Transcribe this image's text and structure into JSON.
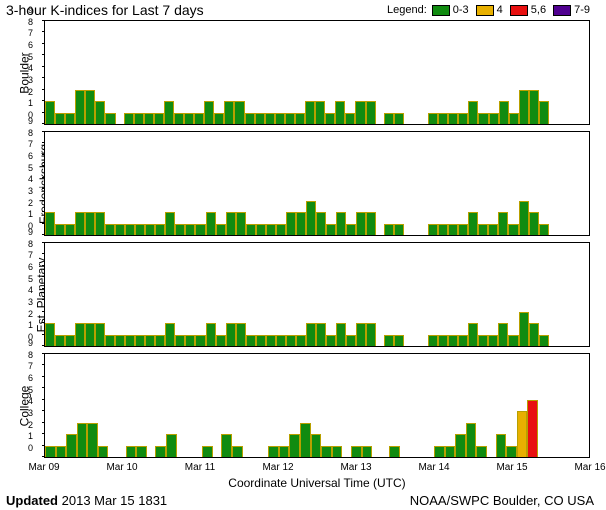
{
  "title": "3-hour K-indices for Last 7 days",
  "legend_label": "Legend:",
  "legend": [
    {
      "color": "#108b10",
      "label": "0-3"
    },
    {
      "color": "#e8b000",
      "label": "4"
    },
    {
      "color": "#e81010",
      "label": "5,6"
    },
    {
      "color": "#500090",
      "label": "7-9"
    }
  ],
  "chart": {
    "ymax": 9,
    "yticks": [
      0,
      1,
      2,
      3,
      4,
      5,
      6,
      7,
      8,
      9
    ],
    "xticks": [
      "Mar 09",
      "Mar 10",
      "Mar 11",
      "Mar 12",
      "Mar 13",
      "Mar 14",
      "Mar 15",
      "Mar 16"
    ],
    "xlabel": "Coordinate Universal Time (UTC)",
    "bar_border": "#b8a000",
    "colors": {
      "low": "#108b10",
      "mid": "#e8b000",
      "high": "#e81010",
      "storm": "#500090"
    }
  },
  "panels": [
    {
      "name": "Boulder",
      "values": [
        2,
        1,
        1,
        3,
        3,
        2,
        1,
        0,
        1,
        1,
        1,
        1,
        2,
        1,
        1,
        1,
        2,
        1,
        2,
        2,
        1,
        1,
        1,
        1,
        1,
        1,
        2,
        2,
        1,
        2,
        1,
        2,
        2,
        0,
        1,
        1,
        0,
        0,
        0,
        1,
        1,
        1,
        1,
        2,
        1,
        1,
        2,
        1,
        3,
        3,
        2,
        0,
        0,
        0,
        0,
        0
      ]
    },
    {
      "name": "Fredericksburg",
      "values": [
        2,
        1,
        1,
        2,
        2,
        2,
        1,
        1,
        1,
        1,
        1,
        1,
        2,
        1,
        1,
        1,
        2,
        1,
        2,
        2,
        1,
        1,
        1,
        1,
        2,
        2,
        3,
        2,
        1,
        2,
        1,
        2,
        2,
        0,
        1,
        1,
        0,
        0,
        0,
        1,
        1,
        1,
        1,
        2,
        1,
        1,
        2,
        1,
        3,
        2,
        1,
        0,
        0,
        0,
        0,
        0
      ]
    },
    {
      "name": "Est. Planetary",
      "values": [
        2,
        1,
        1,
        2,
        2,
        2,
        1,
        1,
        1,
        1,
        1,
        1,
        2,
        1,
        1,
        1,
        2,
        1,
        2,
        2,
        1,
        1,
        1,
        1,
        1,
        1,
        2,
        2,
        1,
        2,
        1,
        2,
        2,
        0,
        1,
        1,
        0,
        0,
        0,
        1,
        1,
        1,
        1,
        2,
        1,
        1,
        2,
        1,
        3,
        2,
        1,
        0,
        0,
        0,
        0,
        0
      ]
    },
    {
      "name": "College",
      "values": [
        1,
        1,
        2,
        3,
        3,
        1,
        0,
        0,
        1,
        1,
        0,
        1,
        2,
        0,
        0,
        0,
        1,
        0,
        2,
        1,
        0,
        0,
        0,
        1,
        1,
        2,
        3,
        2,
        1,
        1,
        0,
        1,
        1,
        0,
        0,
        1,
        0,
        0,
        0,
        0,
        1,
        1,
        2,
        3,
        1,
        0,
        2,
        1,
        4,
        5,
        0,
        0,
        0,
        0,
        0,
        0
      ]
    }
  ],
  "footer": {
    "updated_label": "Updated",
    "updated_value": "2013 Mar 15 1831",
    "source": "NOAA/SWPC Boulder, CO USA"
  }
}
